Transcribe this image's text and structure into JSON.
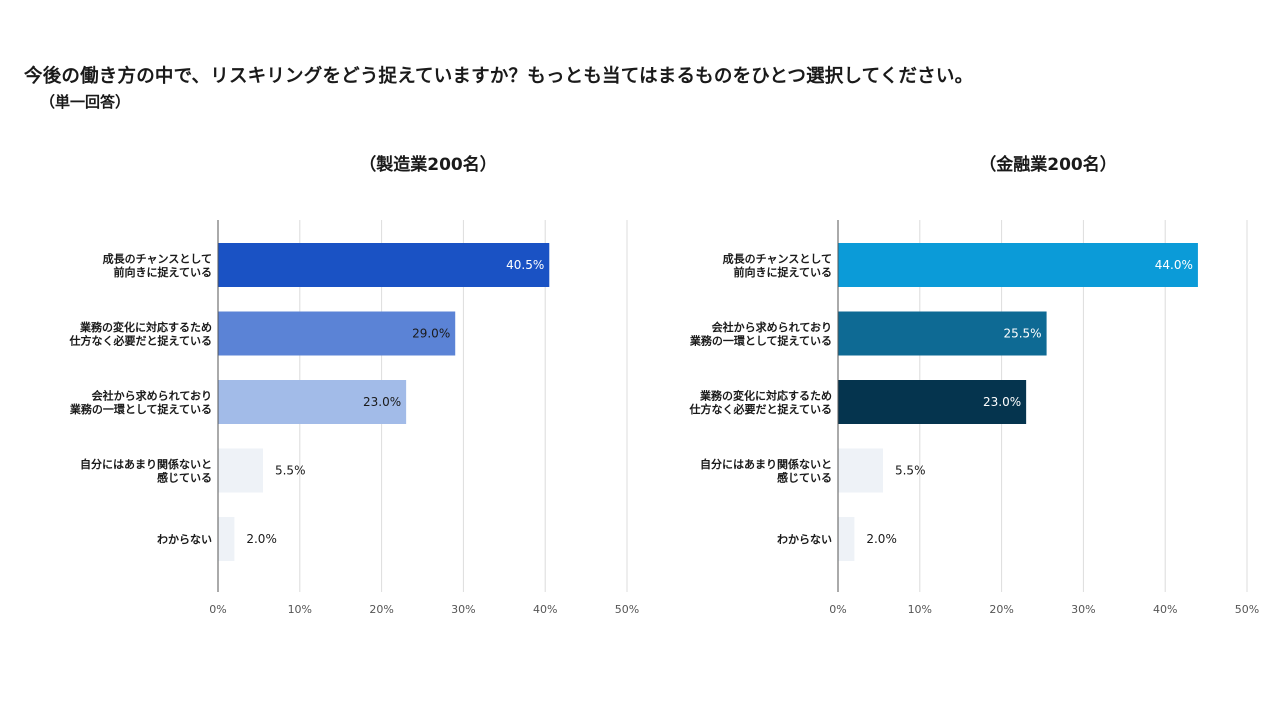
{
  "question": "今後の働き方の中で、リスキリングをどう捉えていますか？もっとも当てはまるものをひとつ選択してください。",
  "question_note": "（単一回答）",
  "chart_data": [
    {
      "type": "bar",
      "orientation": "horizontal",
      "title": "（製造業200名）",
      "categories": [
        [
          "成長のチャンスとして",
          "前向きに捉えている"
        ],
        [
          "業務の変化に対応するため",
          "仕方なく必要だと捉えている"
        ],
        [
          "会社から求められており",
          "業務の一環として捉えている"
        ],
        [
          "自分にはあまり関係ないと",
          "感じている"
        ],
        [
          "わからない"
        ]
      ],
      "values": [
        40.5,
        29.0,
        23.0,
        5.5,
        2.0
      ],
      "value_labels": [
        "40.5%",
        "29.0%",
        "23.0%",
        "5.5%",
        "2.0%"
      ],
      "bar_colors": [
        "#1a52c4",
        "#5b83d6",
        "#a2bbe8",
        "#eef2f7",
        "#eef2f7"
      ],
      "label_colors": [
        "#ffffff",
        "#1a1a1a",
        "#1a1a1a",
        "#1a1a1a",
        "#1a1a1a"
      ],
      "xlim": [
        0,
        50
      ],
      "xticks": [
        "0%",
        "10%",
        "20%",
        "30%",
        "40%",
        "50%"
      ],
      "grid": true
    },
    {
      "type": "bar",
      "orientation": "horizontal",
      "title": "（金融業200名）",
      "categories": [
        [
          "成長のチャンスとして",
          "前向きに捉えている"
        ],
        [
          "会社から求められており",
          "業務の一環として捉えている"
        ],
        [
          "業務の変化に対応するため",
          "仕方なく必要だと捉えている"
        ],
        [
          "自分にはあまり関係ないと",
          "感じている"
        ],
        [
          "わからない"
        ]
      ],
      "values": [
        44.0,
        25.5,
        23.0,
        5.5,
        2.0
      ],
      "value_labels": [
        "44.0%",
        "25.5%",
        "23.0%",
        "5.5%",
        "2.0%"
      ],
      "bar_colors": [
        "#0b9bd8",
        "#0e6a94",
        "#05344e",
        "#eef2f7",
        "#eef2f7"
      ],
      "label_colors": [
        "#ffffff",
        "#ffffff",
        "#ffffff",
        "#1a1a1a",
        "#1a1a1a"
      ],
      "xlim": [
        0,
        50
      ],
      "xticks": [
        "0%",
        "10%",
        "20%",
        "30%",
        "40%",
        "50%"
      ],
      "grid": true
    }
  ]
}
